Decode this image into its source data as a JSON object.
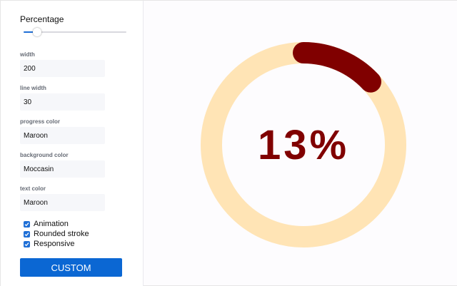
{
  "controls": {
    "percentage_label": "Percentage",
    "percentage_value": 13,
    "width_label": "width",
    "width_value": "200",
    "line_width_label": "line width",
    "line_width_value": "30",
    "progress_color_label": "progress color",
    "progress_color_value": "Maroon",
    "background_color_label": "background color",
    "background_color_value": "Moccasin",
    "text_color_label": "text color",
    "text_color_value": "Maroon",
    "checkboxes": [
      {
        "label": "Animation",
        "checked": true
      },
      {
        "label": "Rounded stroke",
        "checked": true
      },
      {
        "label": "Responsive",
        "checked": true
      }
    ],
    "custom_button_label": "CUSTOM"
  },
  "progress": {
    "text": "13%",
    "value": 13,
    "colors": {
      "progress": "#800000",
      "background": "#FFE4B5",
      "text": "#800000"
    }
  },
  "theme": {
    "accent": "#1f6fd6",
    "button": "#0b67d3"
  }
}
